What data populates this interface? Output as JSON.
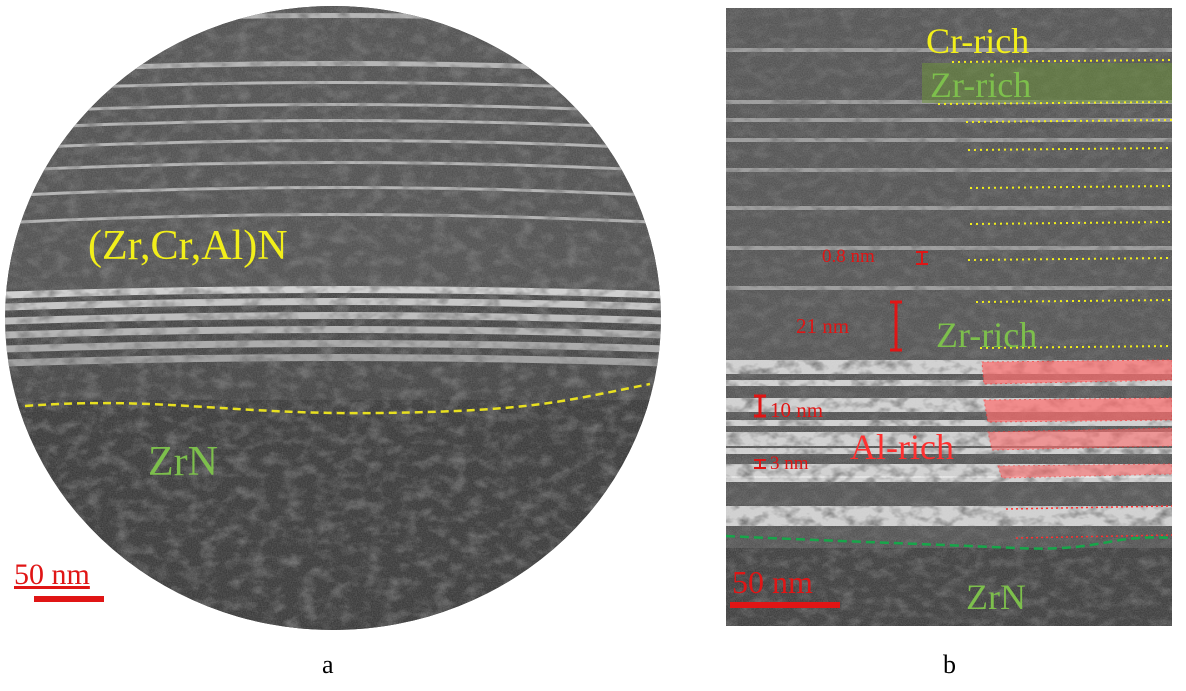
{
  "panel_a": {
    "caption": "a",
    "coating_label": "(Zr,Cr,Al)N",
    "substrate_label": "ZrN",
    "scale_bar_label": "50 nm",
    "colors": {
      "coating": "#f2ef1a",
      "substrate": "#7dbf4c",
      "scale": "#e01515",
      "interface": "#e8e020"
    }
  },
  "panel_b": {
    "caption": "b",
    "cr_rich_label": "Cr-rich",
    "zr_rich_top_label": "Zr-rich",
    "zr_rich_mid_label": "Zr-rich",
    "al_rich_label": "Al-rich",
    "substrate_label": "ZrN",
    "scale_bar_label": "50 nm",
    "dimensions": {
      "d1": "0.8 nm",
      "d2": "21 nm",
      "d3": "10 nm",
      "d4": "3 nm"
    },
    "colors": {
      "cr": "#f2ef1a",
      "zr": "#7dbf4c",
      "al": "#ff3030",
      "dim": "#e01515",
      "interface": "#17a64a"
    }
  }
}
